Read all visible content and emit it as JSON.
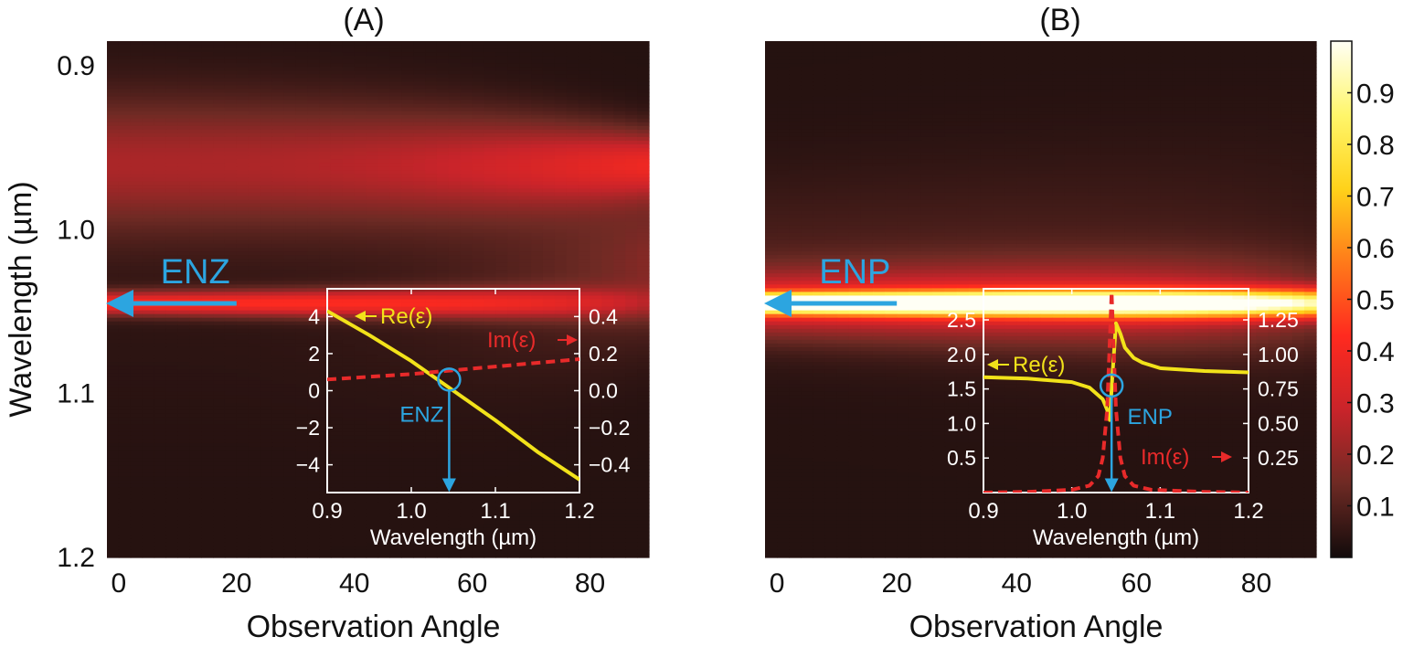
{
  "chart_data": [
    {
      "type": "heatmap",
      "title": "(A)",
      "xlabel": "Observation Angle",
      "ylabel": "Wavelength (µm)",
      "xlim": [
        -2,
        90
      ],
      "ylim": [
        0.885,
        1.2
      ],
      "xticks": [
        0,
        20,
        40,
        60,
        80
      ],
      "xtick_labels": [
        "0",
        "20",
        "40",
        "60",
        "80"
      ],
      "yticks": [
        0.9,
        1.0,
        1.1,
        1.2
      ],
      "ytick_labels": [
        "0.9",
        "1.0",
        "1.1",
        "1.2"
      ],
      "bands": [
        {
          "center": 0.96,
          "width": 0.04,
          "peak": 0.33,
          "angle_peak_at": 90,
          "edge_value": 0.6
        },
        {
          "center": 1.045,
          "width": 0.007,
          "peak": 0.38,
          "angle_peak_at": 0,
          "edge_value": 0.3
        },
        {
          "center": 1.02,
          "width": 0.09,
          "peak": 0.15,
          "angle_peak_at": 60,
          "edge_value": 0.1
        }
      ],
      "annotation": {
        "text": "ENZ",
        "wavelength": 1.045,
        "arrow_from_angle": 20,
        "arrow_to_angle": -2,
        "color": "#2ca5e0"
      },
      "inset": {
        "xlabel": "Wavelength (µm)",
        "xlim": [
          0.9,
          1.2
        ],
        "xticks": [
          0.9,
          1.0,
          1.1,
          1.2
        ],
        "xtick_labels": [
          "0.9",
          "1.0",
          "1.1",
          "1.2"
        ],
        "y_left_lim": [
          -5.5,
          5.5
        ],
        "y_left_ticks": [
          4,
          2,
          0,
          -2,
          -4
        ],
        "y_left_labels": [
          "4",
          "2",
          "0",
          "−2",
          "−4"
        ],
        "y_right_lim": [
          -0.55,
          0.55
        ],
        "y_right_ticks": [
          0.4,
          0.2,
          0.0,
          -0.2,
          -0.4
        ],
        "y_right_labels": [
          "0.4",
          "0.2",
          "0.0",
          "−0.2",
          "−0.4"
        ],
        "series": [
          {
            "name": "Re(ε)",
            "axis": "left",
            "color": "#f2e21a",
            "style": "solid",
            "x": [
              0.9,
              0.95,
              1.0,
              1.05,
              1.1,
              1.15,
              1.2
            ],
            "y": [
              4.3,
              3.0,
              1.6,
              0.0,
              -1.6,
              -3.3,
              -4.8
            ]
          },
          {
            "name": "Im(ε)",
            "axis": "right",
            "color": "#e82a2a",
            "style": "dashed",
            "x": [
              0.9,
              1.0,
              1.1,
              1.2
            ],
            "y": [
              0.06,
              0.09,
              0.13,
              0.17
            ]
          }
        ],
        "labels": {
          "re": "Re(ε)",
          "im": "Im(ε)",
          "point": "ENZ"
        },
        "marker": {
          "x": 1.045,
          "y_left": 0.6
        }
      }
    },
    {
      "type": "heatmap",
      "title": "(B)",
      "xlabel": "Observation Angle",
      "ylabel": "",
      "xlim": [
        -2,
        90
      ],
      "ylim": [
        0.885,
        1.2
      ],
      "xticks": [
        0,
        20,
        40,
        60,
        80
      ],
      "xtick_labels": [
        "0",
        "20",
        "40",
        "60",
        "80"
      ],
      "bands": [
        {
          "center": 1.045,
          "width": 0.006,
          "peak": 1.0,
          "angle_peak_at": 0,
          "edge_value": 0.75
        },
        {
          "center": 1.045,
          "width": 0.02,
          "peak": 0.3,
          "angle_peak_at": 0,
          "edge_value": 0.4
        },
        {
          "center": 1.02,
          "width": 0.05,
          "peak": 0.06,
          "angle_peak_at": 0,
          "edge_value": 0.5
        }
      ],
      "annotation": {
        "text": "ENP",
        "wavelength": 1.045,
        "arrow_from_angle": 20,
        "arrow_to_angle": -2,
        "color": "#2ca5e0"
      },
      "inset": {
        "xlabel": "Wavelength (µm)",
        "xlim": [
          0.9,
          1.2
        ],
        "xticks": [
          0.9,
          1.0,
          1.1,
          1.2
        ],
        "xtick_labels": [
          "0.9",
          "1.0",
          "1.1",
          "1.2"
        ],
        "y_left_lim": [
          0,
          2.95
        ],
        "y_left_ticks": [
          2.5,
          2.0,
          1.5,
          1.0,
          0.5
        ],
        "y_left_labels": [
          "2.5",
          "2.0",
          "1.5",
          "1.0",
          "0.5"
        ],
        "y_right_lim": [
          0,
          1.475
        ],
        "y_right_ticks": [
          1.25,
          1.0,
          0.75,
          0.5,
          0.25
        ],
        "y_right_labels": [
          "1.25",
          "1.00",
          "0.75",
          "0.50",
          "0.25"
        ],
        "series": [
          {
            "name": "Re(ε)",
            "axis": "left",
            "color": "#f2e21a",
            "style": "solid",
            "x": [
              0.9,
              0.95,
              1.0,
              1.02,
              1.035,
              1.04,
              1.043,
              1.046,
              1.05,
              1.055,
              1.06,
              1.07,
              1.08,
              1.1,
              1.15,
              1.2
            ],
            "y": [
              1.67,
              1.65,
              1.6,
              1.52,
              1.35,
              1.2,
              1.05,
              1.7,
              2.45,
              2.3,
              2.1,
              1.95,
              1.88,
              1.8,
              1.76,
              1.74
            ]
          },
          {
            "name": "Im(ε)",
            "axis": "right",
            "color": "#e82a2a",
            "style": "dashed",
            "x": [
              0.9,
              0.95,
              1.0,
              1.02,
              1.03,
              1.035,
              1.04,
              1.043,
              1.045,
              1.047,
              1.05,
              1.055,
              1.06,
              1.07,
              1.09,
              1.15,
              1.2
            ],
            "y": [
              0.0,
              0.005,
              0.02,
              0.05,
              0.12,
              0.25,
              0.6,
              1.1,
              1.45,
              1.1,
              0.6,
              0.25,
              0.12,
              0.05,
              0.02,
              0.005,
              0.0
            ]
          }
        ],
        "labels": {
          "re": "Re(ε)",
          "im": "Im(ε)",
          "point": "ENP"
        },
        "marker": {
          "x": 1.045,
          "y_left": 1.55
        }
      }
    }
  ],
  "colorbar": {
    "range": [
      0,
      1
    ],
    "ticks": [
      0.1,
      0.2,
      0.3,
      0.4,
      0.5,
      0.6,
      0.7,
      0.8,
      0.9
    ],
    "tick_labels": [
      "0.1",
      "0.2",
      "0.3",
      "0.4",
      "0.5",
      "0.6",
      "0.7",
      "0.8",
      "0.9"
    ],
    "colormap": [
      "#120b0b",
      "#6e2a24",
      "#c9242a",
      "#ff2a1f",
      "#ff7a1a",
      "#ffd21a",
      "#fff66b",
      "#fffff5"
    ]
  }
}
